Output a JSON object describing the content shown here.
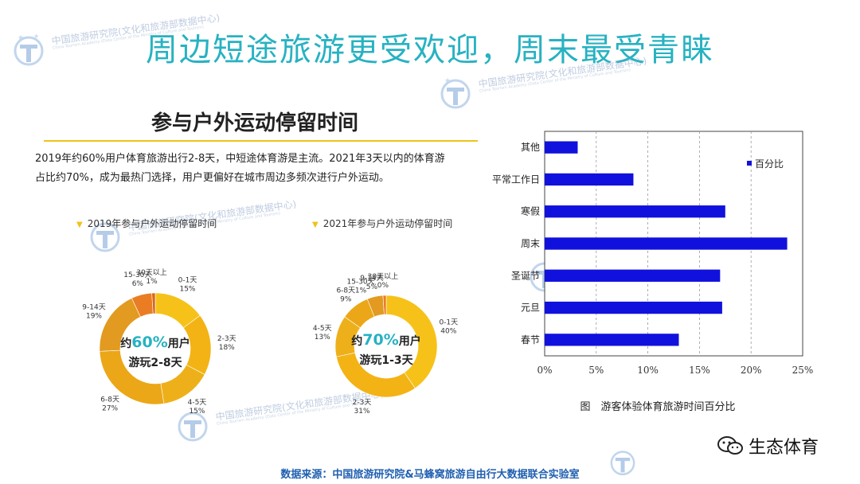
{
  "title": "周边短途旅游更受欢迎，周末最受青睐",
  "watermark": {
    "name_cn": "中国旅游研究院(文化和旅游部数据中心)",
    "name_en": "China Tourism Academy (Data Center of the Ministry of Culture and Tourism)"
  },
  "left_panel": {
    "title": "参与户外运动停留时间",
    "text_line1": "2019年约60%用户体育旅游出行2-8天，中短途体育游是主流。2021年3天以内的体育游",
    "text_line2": "占比约70%，成为最热门选择，用户更偏好在城市周边多频次进行户外运动。"
  },
  "chart_data": [
    {
      "type": "pie",
      "title": "2019年参与户外运动停留时间",
      "center_prefix": "约",
      "center_pct": "60%",
      "center_suffix": "用户",
      "center_line2": "游玩2-8天",
      "slices": [
        {
          "label": "0-1天",
          "value": 15,
          "display": "15%",
          "color": "#f6c21a"
        },
        {
          "label": "2-3天",
          "value": 18,
          "display": "18%",
          "color": "#f3b315"
        },
        {
          "label": "4-5天",
          "value": 15,
          "display": "15%",
          "color": "#eeb01a"
        },
        {
          "label": "6-8天",
          "value": 27,
          "display": "27%",
          "color": "#eba717"
        },
        {
          "label": "9-14天",
          "value": 19,
          "display": "19%",
          "color": "#e29a20"
        },
        {
          "label": "15-30天",
          "value": 6,
          "display": "6%",
          "color": "#ea7d23"
        },
        {
          "label": "30天以上",
          "value": 1,
          "display": "1%",
          "color": "#d9651c"
        }
      ]
    },
    {
      "type": "pie",
      "title": "2021年参与户外运动停留时间",
      "center_prefix": "约",
      "center_pct": "70%",
      "center_suffix": "用户",
      "center_line2": "游玩1-3天",
      "slices": [
        {
          "label": "0-1天",
          "value": 40,
          "display": "40%",
          "color": "#f6c21a"
        },
        {
          "label": "2-3天",
          "value": 31,
          "display": "31%",
          "color": "#f3b315"
        },
        {
          "label": "4-5天",
          "value": 13,
          "display": "13%",
          "color": "#eeb01a"
        },
        {
          "label": "6-8天",
          "value": 9,
          "display": "9%",
          "color": "#eba717"
        },
        {
          "label": "9-14天",
          "value": 5,
          "display": "5%",
          "color": "#e29a20"
        },
        {
          "label": "15-30天",
          "value": 1,
          "display": "1%",
          "color": "#ea7d23"
        },
        {
          "label": "30天以上",
          "value": 0,
          "display": "0%",
          "color": "#d9651c"
        }
      ]
    },
    {
      "type": "bar",
      "orientation": "horizontal",
      "title": "图　游客体验体育旅游时间百分比",
      "categories": [
        "其他",
        "平常工作日",
        "寒假",
        "周末",
        "圣诞节",
        "元旦",
        "春节"
      ],
      "series": [
        {
          "name": "百分比",
          "values": [
            3.2,
            8.6,
            17.5,
            23.5,
            17.0,
            17.2,
            13.0
          ],
          "color": "#1111dd"
        }
      ],
      "xlim": [
        0,
        25
      ],
      "xticks": [
        0,
        5,
        10,
        15,
        20,
        25
      ],
      "tick_suffix": "%",
      "grid": "vertical dashed",
      "legend_position": "top-right"
    }
  ],
  "source": "数据来源：中国旅游研究院&马蜂窝旅游自由行大数据联合实验室",
  "brand": "生态体育"
}
